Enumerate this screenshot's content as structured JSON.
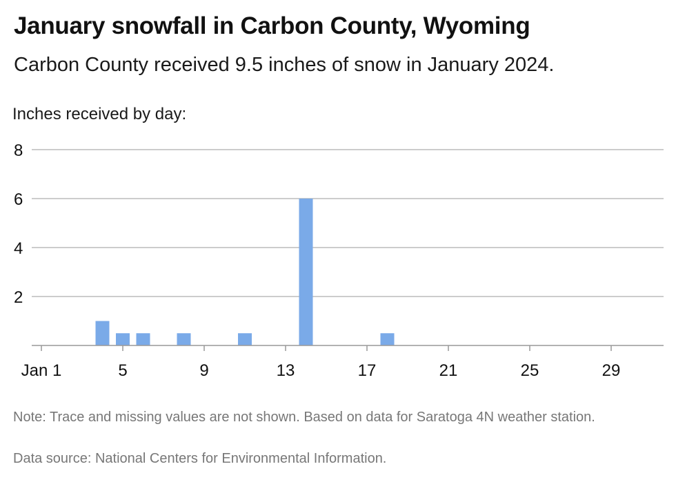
{
  "header": {
    "title": "January snowfall in Carbon County, Wyoming",
    "subtitle": "Carbon County received 9.5 inches of snow in January 2024."
  },
  "footer": {
    "note": "Note: Trace and missing values are not shown. Based on data for Saratoga 4N weather station.",
    "source": "Data source: National Centers for Environmental Information."
  },
  "chart_data": {
    "type": "bar",
    "title": "January snowfall in Carbon County, Wyoming",
    "subtitle": "Carbon County received 9.5 inches of snow in January 2024.",
    "ylabel": "Inches received by day:",
    "xlabel": "",
    "x": [
      4,
      5,
      6,
      8,
      11,
      14,
      18
    ],
    "values": [
      1,
      0.5,
      0.5,
      0.5,
      0.5,
      6,
      0.5
    ],
    "xlim": [
      1,
      31
    ],
    "ylim": [
      0,
      8
    ],
    "yticks": [
      2,
      4,
      6,
      8
    ],
    "xticks": [
      {
        "value": 1,
        "label": "Jan 1"
      },
      {
        "value": 5,
        "label": "5"
      },
      {
        "value": 9,
        "label": "9"
      },
      {
        "value": 13,
        "label": "13"
      },
      {
        "value": 17,
        "label": "17"
      },
      {
        "value": 21,
        "label": "21"
      },
      {
        "value": 25,
        "label": "25"
      },
      {
        "value": 29,
        "label": "29"
      }
    ],
    "grid": true,
    "bar_color": "#7aaae8",
    "grid_color": "#bbbbbb"
  }
}
